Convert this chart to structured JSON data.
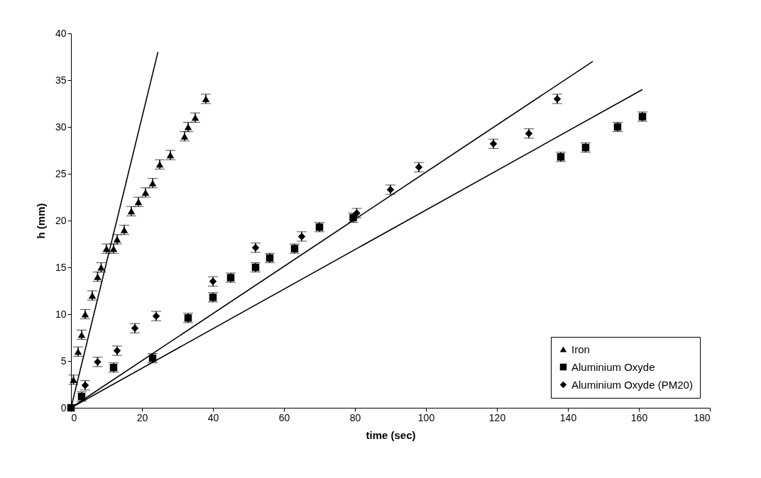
{
  "chart_data": {
    "type": "scatter",
    "xlabel": "time (sec)",
    "ylabel": "h (mm)",
    "xlim": [
      0,
      180
    ],
    "ylim": [
      0,
      40
    ],
    "xticks": [
      0,
      20,
      40,
      60,
      80,
      100,
      120,
      140,
      160,
      180
    ],
    "yticks": [
      0,
      5,
      10,
      15,
      20,
      25,
      30,
      35,
      40
    ],
    "grid": false,
    "legend": "bottom right",
    "series": [
      {
        "name": "Iron",
        "color": "#000000",
        "marker": "triangle",
        "x": [
          0.7,
          2,
          3,
          4,
          6,
          7.5,
          8.5,
          10,
          12,
          13,
          15,
          17,
          19,
          21,
          23,
          25,
          28,
          32,
          33,
          35,
          38
        ],
        "values": [
          3,
          6,
          7.8,
          10,
          12,
          14,
          15,
          17,
          17,
          18,
          19,
          21,
          22,
          23,
          24,
          26,
          27,
          29,
          30,
          31,
          33
        ],
        "errors": [
          0.5,
          0.5,
          0.5,
          0.5,
          0.5,
          0.5,
          0.5,
          0.5,
          0.5,
          0.5,
          0.5,
          0.5,
          0.5,
          0.5,
          0.5,
          0.5,
          0.5,
          0.5,
          0.5,
          0.5,
          0.5
        ]
      },
      {
        "name": "Aluminium Oxyde",
        "color": "#000000",
        "marker": "square",
        "x": [
          0,
          3,
          12,
          23,
          33,
          40,
          45,
          52,
          56,
          63,
          70,
          79.5,
          138,
          145,
          154,
          161
        ],
        "values": [
          0,
          1.2,
          4.3,
          5.3,
          9.6,
          11.8,
          13.9,
          15,
          16,
          17,
          19.3,
          20.3,
          26.8,
          27.8,
          30,
          31.1
        ],
        "errors": [
          null,
          0.5,
          0.5,
          0.5,
          0.5,
          0.5,
          0.5,
          0.5,
          0.5,
          0.5,
          0.5,
          0.5,
          0.5,
          0.5,
          0.5,
          0.5
        ]
      },
      {
        "name": "Aluminium Oxyde (PM20)",
        "color": "#000000",
        "marker": "diamond",
        "x": [
          4,
          7.5,
          13,
          18,
          24,
          40,
          52,
          65,
          80.5,
          90,
          98,
          119,
          129,
          137
        ],
        "values": [
          2.4,
          4.9,
          6.1,
          8.5,
          9.8,
          13.5,
          17.1,
          18.3,
          20.8,
          23.3,
          25.7,
          28.2,
          29.3,
          33
        ],
        "errors": [
          0.5,
          0.5,
          0.5,
          0.5,
          0.5,
          0.5,
          0.5,
          0.5,
          0.5,
          0.5,
          0.5,
          0.5,
          0.5,
          0.5
        ]
      },
      {
        "type": "line",
        "color": "#000000",
        "x": [
          0,
          24.5
        ],
        "values": [
          0,
          38
        ]
      },
      {
        "type": "line",
        "color": "#000000",
        "x": [
          0,
          147
        ],
        "values": [
          0,
          37
        ]
      },
      {
        "type": "line",
        "color": "#000000",
        "x": [
          0,
          161
        ],
        "values": [
          0,
          34
        ]
      }
    ]
  }
}
